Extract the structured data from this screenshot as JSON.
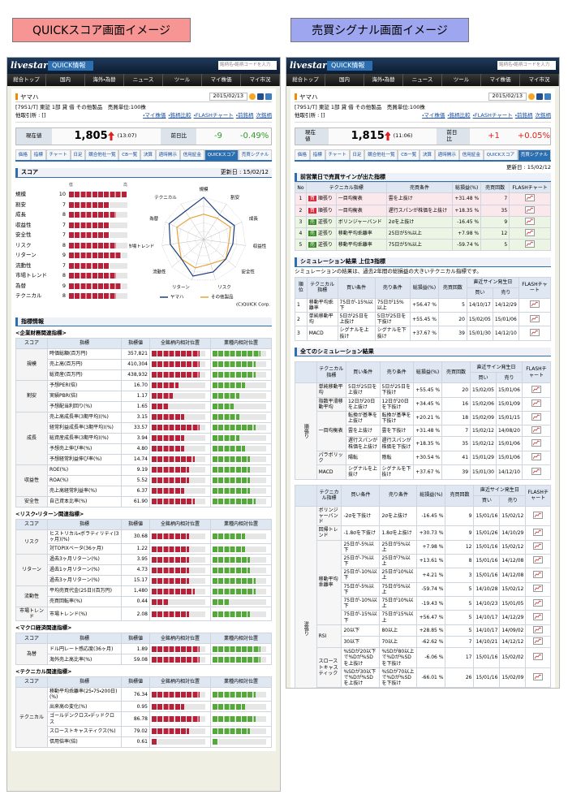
{
  "labels": {
    "left": "QUICKスコア画面イメージ",
    "right": "売買シグナル画面イメージ"
  },
  "common": {
    "logo": "livestar",
    "service": "QUICK情報",
    "search": "銘柄名・銘柄コードを入力",
    "nav": [
      "総合トップ",
      "国内",
      "海外・為替",
      "ニュース",
      "ツール",
      "マイ株価",
      "マイ市況"
    ],
    "stock": "ヤマハ",
    "date": "2015/02/13",
    "info": "[7951/T] 東証 1部 貸 借 その他製品　売買単位:100株",
    "other": "他取引所 : []",
    "links": [
      "・マイ株価",
      "・銘柄比較",
      "・FLASHチャート",
      "・前銘柄",
      "次銘柄"
    ],
    "price_label": "現在値",
    "change_label": "前日比",
    "tabs": [
      "価格",
      "指標",
      "チャート",
      "日足",
      "競合他社一覧",
      "CB一覧",
      "決算",
      "適時開示",
      "信用証金",
      "QUICKスコア",
      "売買シグナル"
    ]
  },
  "left": {
    "price": "1,805",
    "time": "(13:07)",
    "change": "-9",
    "pct": "-0.49%",
    "change_color": "#2f9a2a",
    "active_tab": 9,
    "section": "スコア",
    "updated": "更新日 : 15/02/12",
    "low": "低",
    "high": "高",
    "score_lim": [
      0,
      10
    ],
    "radar_rings": [
      2,
      4,
      6,
      8,
      10
    ],
    "scores": {
      "names": [
        "規模",
        "割安",
        "成長",
        "収益性",
        "安全性",
        "リスク",
        "リターン",
        "流動性",
        "市場トレンド",
        "為替",
        "テクニカル"
      ],
      "values": [
        10,
        7,
        8,
        7,
        7,
        8,
        9,
        7,
        8,
        9,
        8
      ],
      "industry": [
        6,
        6,
        7,
        6,
        7,
        6,
        7,
        7,
        6,
        7,
        6
      ],
      "colors": [
        "#1d3f7a",
        "#e8a33a"
      ]
    },
    "legend": [
      "ヤマハ",
      "その他製品"
    ],
    "copyright": "(C)QUICK Corp.",
    "info_title": "指標情報",
    "headers": [
      "スコア",
      "指標",
      "指標値",
      "全銘柄内相対位置",
      "業種内相対位置"
    ],
    "bar_colors": [
      "#b8213a",
      "#55a93a"
    ],
    "groups": [
      {
        "title": "<企業財務関連指標>",
        "sections": [
          {
            "score": "規模",
            "rows": [
              {
                "name": "時価総額(百万円)",
                "value": "357,821",
                "all": 9,
                "industry": 9
              },
              {
                "name": "売上高(百万円)",
                "value": "410,304",
                "all": 9,
                "industry": 8
              },
              {
                "name": "総資産(百万円)",
                "value": "438,932",
                "all": 9,
                "industry": 8
              }
            ]
          },
          {
            "score": "割安",
            "rows": [
              {
                "name": "予想PER(倍)",
                "value": "16.70",
                "all": 5,
                "industry": 6
              },
              {
                "name": "実績PBR(倍)",
                "value": "1.17",
                "all": 4,
                "industry": 5
              },
              {
                "name": "予想配当利回り(%)",
                "value": "1.65",
                "all": 3,
                "industry": 4
              }
            ]
          },
          {
            "score": "成長",
            "rows": [
              {
                "name": "売上高成長率(3期平均)(%)",
                "value": "3.15",
                "all": 6,
                "industry": 5
              },
              {
                "name": "経常利益成長率(3期平均)(%)",
                "value": "33.57",
                "all": 9,
                "industry": 8
              },
              {
                "name": "総資産成長率(3期平均)(%)",
                "value": "3.94",
                "all": 6,
                "industry": 5
              },
              {
                "name": "予想売上伸び率(%)",
                "value": "4.80",
                "all": 6,
                "industry": 6
              },
              {
                "name": "予想経常利益伸び率(%)",
                "value": "14.74",
                "all": 8,
                "industry": 7
              }
            ]
          },
          {
            "score": "収益性",
            "rows": [
              {
                "name": "ROE(%)",
                "value": "9.19",
                "all": 7,
                "industry": 7
              },
              {
                "name": "ROA(%)",
                "value": "5.52",
                "all": 7,
                "industry": 7
              },
              {
                "name": "売上高経常利益率(%)",
                "value": "6.37",
                "all": 6,
                "industry": 7
              }
            ]
          },
          {
            "score": "安全性",
            "rows": [
              {
                "name": "自己資本比率(%)",
                "value": "61.90",
                "all": 8,
                "industry": 8
              }
            ]
          }
        ]
      },
      {
        "title": "<リスク・リターン関連指標>",
        "sections": [
          {
            "score": "リスク",
            "rows": [
              {
                "name": "ヒストリカル・ボラティリティ(3ヶ月)(%)",
                "value": "30.68",
                "all": 7,
                "industry": 6
              },
              {
                "name": "対TOPIXベータ(36ヶ月)",
                "value": "1.22",
                "all": 7,
                "industry": 6
              }
            ]
          },
          {
            "score": "リターン",
            "rows": [
              {
                "name": "過去3ヶ月リターン(%)",
                "value": "3.95",
                "all": 7,
                "industry": 7
              },
              {
                "name": "過去1ヶ月リターン(%)",
                "value": "4.73",
                "all": 7,
                "industry": 7
              },
              {
                "name": "過去3ヶ月リターン(%)",
                "value": "15.17",
                "all": 7,
                "industry": 8
              }
            ]
          },
          {
            "score": "流動性",
            "rows": [
              {
                "name": "平均売買代金(25日)(百万円)",
                "value": "1,480",
                "all": 8,
                "industry": 8
              },
              {
                "name": "売買回転率(%)",
                "value": "0.44",
                "all": 3,
                "industry": 3
              }
            ]
          },
          {
            "score": "市場トレンド",
            "rows": [
              {
                "name": "市場トレンド(%)",
                "value": "2.08",
                "all": 7,
                "industry": 7
              }
            ]
          }
        ]
      },
      {
        "title": "<マクロ経済関連指標>",
        "sections": [
          {
            "score": "為替",
            "rows": [
              {
                "name": "ドル円レート感応度(36ヶ月)",
                "value": "1.89",
                "all": 9,
                "industry": 9
              },
              {
                "name": "海外売上高比率(%)",
                "value": "59.08",
                "all": 9,
                "industry": 9
              }
            ]
          }
        ]
      },
      {
        "title": "<テクニカル関連指標>",
        "sections": [
          {
            "score": "テクニカル",
            "rows": [
              {
                "name": "移動平均乖離率(25・75・200日)(%)",
                "value": "76.34",
                "all": 9,
                "industry": 8
              },
              {
                "name": "出来高の変化(%)",
                "value": "0.95",
                "all": 6,
                "industry": 6
              },
              {
                "name": "ゴールデンクロス・デッドクロス",
                "value": "86.78",
                "all": 9,
                "industry": 8
              },
              {
                "name": "スローストキャスティクス(%)",
                "value": "79.02",
                "all": 7,
                "industry": 7
              },
              {
                "name": "信用倍率(倍)",
                "value": "0.61",
                "all": 1,
                "industry": 1
              }
            ]
          }
        ]
      }
    ]
  },
  "right": {
    "price": "1,815",
    "time": "(11:06)",
    "change": "+1",
    "pct": "+0.05%",
    "change_color": "#e0201c",
    "active_tab": 10,
    "updated": "更新日 : 15/02/12",
    "signals": {
      "title": "前営業日で売買サインが出た指標",
      "headers": [
        "No",
        "テクニカル指標",
        "売買条件",
        "総損益(%)",
        "売買回数",
        "FLASHチャート"
      ],
      "rows": [
        {
          "color": "#fbe8ec",
          "badge": "#d2283c",
          "cells": [
            "1",
            "買",
            "順張り",
            "一目均衡表",
            "雲を上抜け",
            "+31.48 %",
            "7"
          ]
        },
        {
          "color": "#fbe8ec",
          "badge": "#d2283c",
          "cells": [
            "2",
            "買",
            "順張り",
            "一目均衡表",
            "遅行スパンが株価を上抜け",
            "+18.35 %",
            "35"
          ]
        },
        {
          "color": "#ecf5e4",
          "badge": "#3a8a2a",
          "cells": [
            "3",
            "売",
            "逆張り",
            "ボリンジャーバンド",
            "2σを上抜け",
            "-16.45 %",
            "9"
          ]
        },
        {
          "color": "#ecf5e4",
          "badge": "#3a8a2a",
          "cells": [
            "4",
            "売",
            "逆張り",
            "移動平均乖離率",
            "25日が5%以上",
            "+7.98 %",
            "12"
          ]
        },
        {
          "color": "#ecf5e4",
          "badge": "#3a8a2a",
          "cells": [
            "5",
            "売",
            "逆張り",
            "移動平均乖離率",
            "75日が5%以上",
            "-59.74 %",
            "5"
          ]
        }
      ]
    },
    "top3": {
      "title": "シミュレーション結果 上位3指標",
      "note": "シミュレーションの結果は、過去2年間の総損益の大きいテクニカル指標です。",
      "headers": [
        "順位",
        "テクニカル指標",
        "買い条件",
        "売り条件",
        "総損益(%)",
        "売買回数",
        "直近サイン発生日",
        "FLASHチャート"
      ],
      "sub": [
        "買い",
        "売り"
      ],
      "rows": [
        [
          "1",
          "移動平均乖離率",
          "75日が-15%以下",
          "75日が15%以上",
          "+56.47 %",
          "5",
          "14/10/17",
          "14/12/29"
        ],
        [
          "2",
          "単純移動平均",
          "5日が25日を上抜け",
          "5日が25日を下抜け",
          "+55.45 %",
          "20",
          "15/02/05",
          "15/01/06"
        ],
        [
          "3",
          "MACD",
          "シグナルを上抜け",
          "シグナルを下抜け",
          "+37.67 %",
          "39",
          "15/01/30",
          "14/12/10"
        ]
      ]
    },
    "all": {
      "title": "全てのシミュレーション結果",
      "headers": [
        "テクニカル指標",
        "買い条件",
        "売り条件",
        "総損益(%)",
        "売買回数",
        "直近サイン発生日",
        "FLASHチャート"
      ],
      "sub": [
        "買い",
        "売り"
      ],
      "tables": [
        {
          "side": "順張り",
          "groups": [
            {
              "name": "単純移動平均",
              "rows": [
                [
                  "5日が25日を上抜け",
                  "5日が25日を下抜け",
                  "+55.45 %",
                  "20",
                  "15/02/05",
                  "15/01/06"
                ]
              ]
            },
            {
              "name": "指数平滑移動平均",
              "rows": [
                [
                  "12日が20日を上抜け",
                  "12日が20日を下抜け",
                  "+34.45 %",
                  "16",
                  "15/02/06",
                  "15/01/09"
                ]
              ]
            },
            {
              "name": "一目均衡表",
              "rows": [
                [
                  "転換が基準を上抜け",
                  "転換が基準を下抜け",
                  "+20.21 %",
                  "18",
                  "15/02/09",
                  "15/01/15"
                ],
                [
                  "雲を上抜け",
                  "雲を下抜け",
                  "+31.48 %",
                  "7",
                  "15/02/12",
                  "14/08/20"
                ],
                [
                  "遅行スパンが株価を上抜け",
                  "遅行スパンが株価を下抜け",
                  "+18.35 %",
                  "35",
                  "15/02/12",
                  "15/01/06"
                ]
              ]
            },
            {
              "name": "パラボリック",
              "rows": [
                [
                  "陽転",
                  "陰転",
                  "+30.54 %",
                  "41",
                  "15/01/29",
                  "15/01/06"
                ]
              ]
            },
            {
              "name": "MACD",
              "rows": [
                [
                  "シグナルを上抜け",
                  "シグナルを下抜け",
                  "+37.67 %",
                  "39",
                  "15/01/30",
                  "14/12/10"
                ]
              ]
            }
          ]
        },
        {
          "side": "逆張り",
          "groups": [
            {
              "name": "ボリンジャーバンド",
              "rows": [
                [
                  "-2σを下抜け",
                  "2σを上抜け",
                  "-16.45 %",
                  "9",
                  "15/01/16",
                  "15/02/12"
                ]
              ]
            },
            {
              "name": "回帰トレンド",
              "rows": [
                [
                  "-1.8σを下抜け",
                  "1.8σを上抜け",
                  "+30.73 %",
                  "9",
                  "15/01/26",
                  "14/10/29"
                ]
              ]
            },
            {
              "name": "移動平均乖離率",
              "rows": [
                [
                  "25日が-5%以下",
                  "25日が5%以上",
                  "+7.98 %",
                  "12",
                  "15/01/16",
                  "15/02/12"
                ],
                [
                  "25日が-7%以下",
                  "25日が7%以上",
                  "+13.61 %",
                  "8",
                  "15/01/16",
                  "14/12/08"
                ],
                [
                  "25日が-10%以下",
                  "25日が10%以上",
                  "+4.21 %",
                  "3",
                  "15/01/16",
                  "14/12/08"
                ],
                [
                  "75日が-5%以下",
                  "75日が5%以上",
                  "-59.74 %",
                  "5",
                  "14/10/28",
                  "15/02/12"
                ],
                [
                  "75日が-10%以下",
                  "75日が10%以上",
                  "-19.43 %",
                  "5",
                  "14/10/23",
                  "15/01/05"
                ],
                [
                  "75日が-15%以下",
                  "75日が15%以上",
                  "+56.47 %",
                  "5",
                  "14/10/17",
                  "14/12/29"
                ]
              ]
            },
            {
              "name": "RSI",
              "rows": [
                [
                  "20以下",
                  "80以上",
                  "+28.85 %",
                  "5",
                  "14/10/17",
                  "14/09/02"
                ],
                [
                  "30以下",
                  "70以上",
                  "-62.62 %",
                  "7",
                  "14/10/21",
                  "14/12/12"
                ]
              ]
            },
            {
              "name": "スローストキャスティック",
              "rows": [
                [
                  "%SDが20以下で%Dが%SDを上抜け",
                  "%SDが80以上で%Dが%SDを下抜け",
                  "-6.06 %",
                  "17",
                  "15/01/16",
                  "15/02/02"
                ],
                [
                  "%SDが30以下で%Dが%SDを上抜け",
                  "%SDが70以上で%Dが%SDを下抜け",
                  "-66.01 %",
                  "26",
                  "15/01/16",
                  "15/02/09"
                ]
              ]
            },
            {
              "name": "サイコロジカル",
              "rows": [
                [
                  "20以下",
                  "80以上",
                  "+29.39 %",
                  "3",
                  "14/03/26",
                  "14/12/09"
                ],
                [
                  "30以下",
                  "70以上",
                  "+1.95 %",
                  "6",
                  "15/01/19",
                  "14/12/10"
                ]
              ]
            },
            {
              "name": "RCI",
              "rows": [
                [
                  "5日が10日を-70以下で下抜け",
                  "5日が10日を70以上で上抜け",
                  "-63.42 %",
                  "15",
                  "15/01/08",
                  "15/02/10"
                ],
                [
                  "5日が10日を-80以下で下抜け",
                  "5日が10日を80以上で上抜け",
                  "-77.66 %",
                  "9",
                  "14/12/16",
                  "15/02/10"
                ]
              ]
            }
          ]
        }
      ]
    }
  }
}
